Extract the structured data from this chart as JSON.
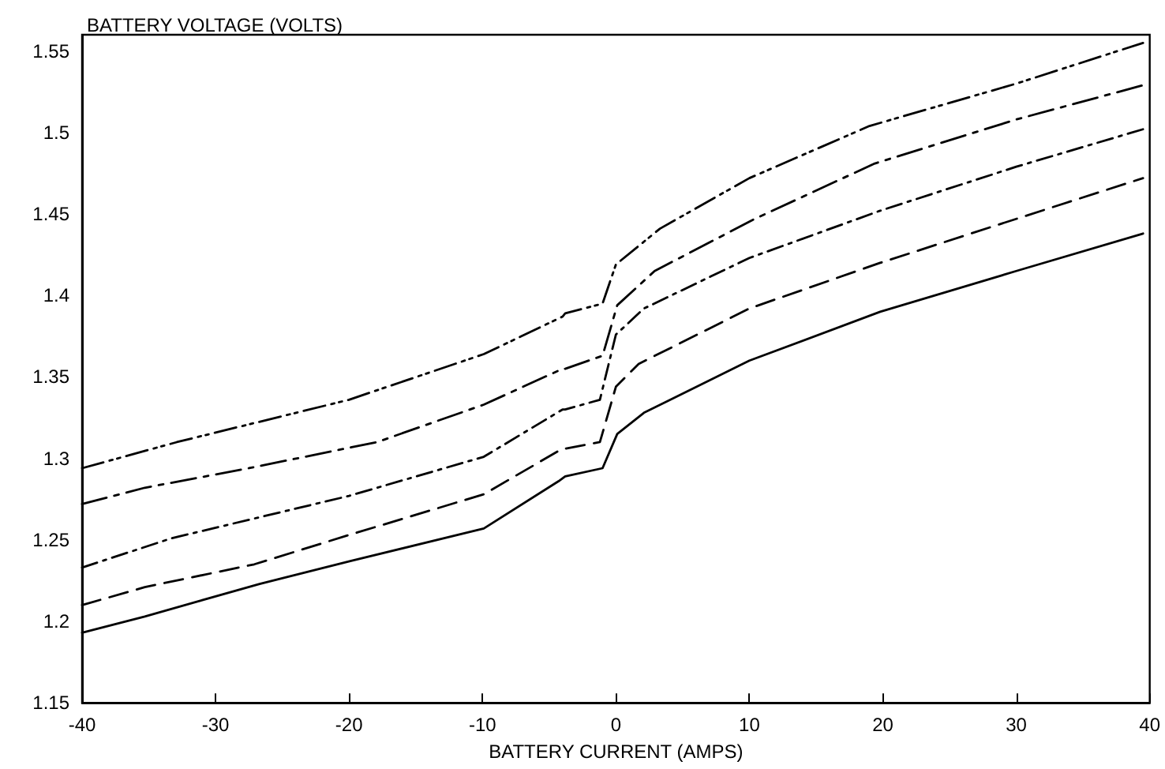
{
  "chart_data": {
    "type": "line",
    "xlabel": "BATTERY CURRENT (AMPS)",
    "ylabel": "BATTERY VOLTAGE (VOLTS)",
    "xlim": [
      -40,
      40
    ],
    "xticks": [
      -40,
      -30,
      -20,
      -10,
      0,
      10,
      20,
      30,
      40
    ],
    "ylim": [
      1.15,
      1.56
    ],
    "yticks": [
      1.15,
      1.2,
      1.25,
      1.3,
      1.35,
      1.4,
      1.45,
      1.5,
      1.55
    ],
    "marker": "none",
    "series": [
      {
        "color": "#000000",
        "line_style": "dashed",
        "x": [
          -40,
          -32.9,
          -20,
          -9.9,
          -4,
          -3.8,
          -1.0,
          0.0,
          3.3,
          10,
          19,
          30,
          39.5
        ],
        "values": [
          1.294,
          1.31,
          1.336,
          1.364,
          1.387,
          1.389,
          1.395,
          1.419,
          1.441,
          1.472,
          1.504,
          1.53,
          1.555
        ]
      },
      {
        "color": "#000000",
        "line_style": "dashed",
        "x": [
          -40,
          -35.3,
          -27.5,
          -17.9,
          -9.9,
          -4,
          -3.8,
          -1.0,
          0.1,
          2.9,
          10.4,
          19.4,
          30,
          39.5
        ],
        "values": [
          1.272,
          1.282,
          1.294,
          1.31,
          1.333,
          1.355,
          1.355,
          1.363,
          1.394,
          1.415,
          1.447,
          1.481,
          1.508,
          1.529
        ]
      },
      {
        "color": "#000000",
        "line_style": "dashed",
        "x": [
          -40,
          -33.3,
          -20,
          -9.9,
          -4,
          -3.8,
          -1.2,
          0.0,
          2.1,
          10,
          19.8,
          30,
          39.5
        ],
        "values": [
          1.233,
          1.251,
          1.277,
          1.301,
          1.33,
          1.33,
          1.336,
          1.376,
          1.392,
          1.423,
          1.452,
          1.479,
          1.502
        ]
      },
      {
        "color": "#000000",
        "line_style": "dashed",
        "x": [
          -40,
          -35.3,
          -27.1,
          -20,
          -9.9,
          -4,
          -3.8,
          -1.2,
          0.0,
          1.7,
          10,
          19.8,
          30,
          39.5
        ],
        "values": [
          1.21,
          1.221,
          1.235,
          1.253,
          1.278,
          1.306,
          1.306,
          1.31,
          1.344,
          1.358,
          1.392,
          1.42,
          1.447,
          1.472
        ]
      },
      {
        "color": "#000000",
        "line_style": "solid",
        "x": [
          -40,
          -35.3,
          -26.7,
          -19.9,
          -9.9,
          -4.3,
          -3.8,
          -1.0,
          0.1,
          2.1,
          10,
          19.8,
          30,
          39.5
        ],
        "values": [
          1.193,
          1.203,
          1.223,
          1.237,
          1.257,
          1.286,
          1.289,
          1.294,
          1.315,
          1.328,
          1.36,
          1.39,
          1.415,
          1.438
        ]
      }
    ]
  }
}
